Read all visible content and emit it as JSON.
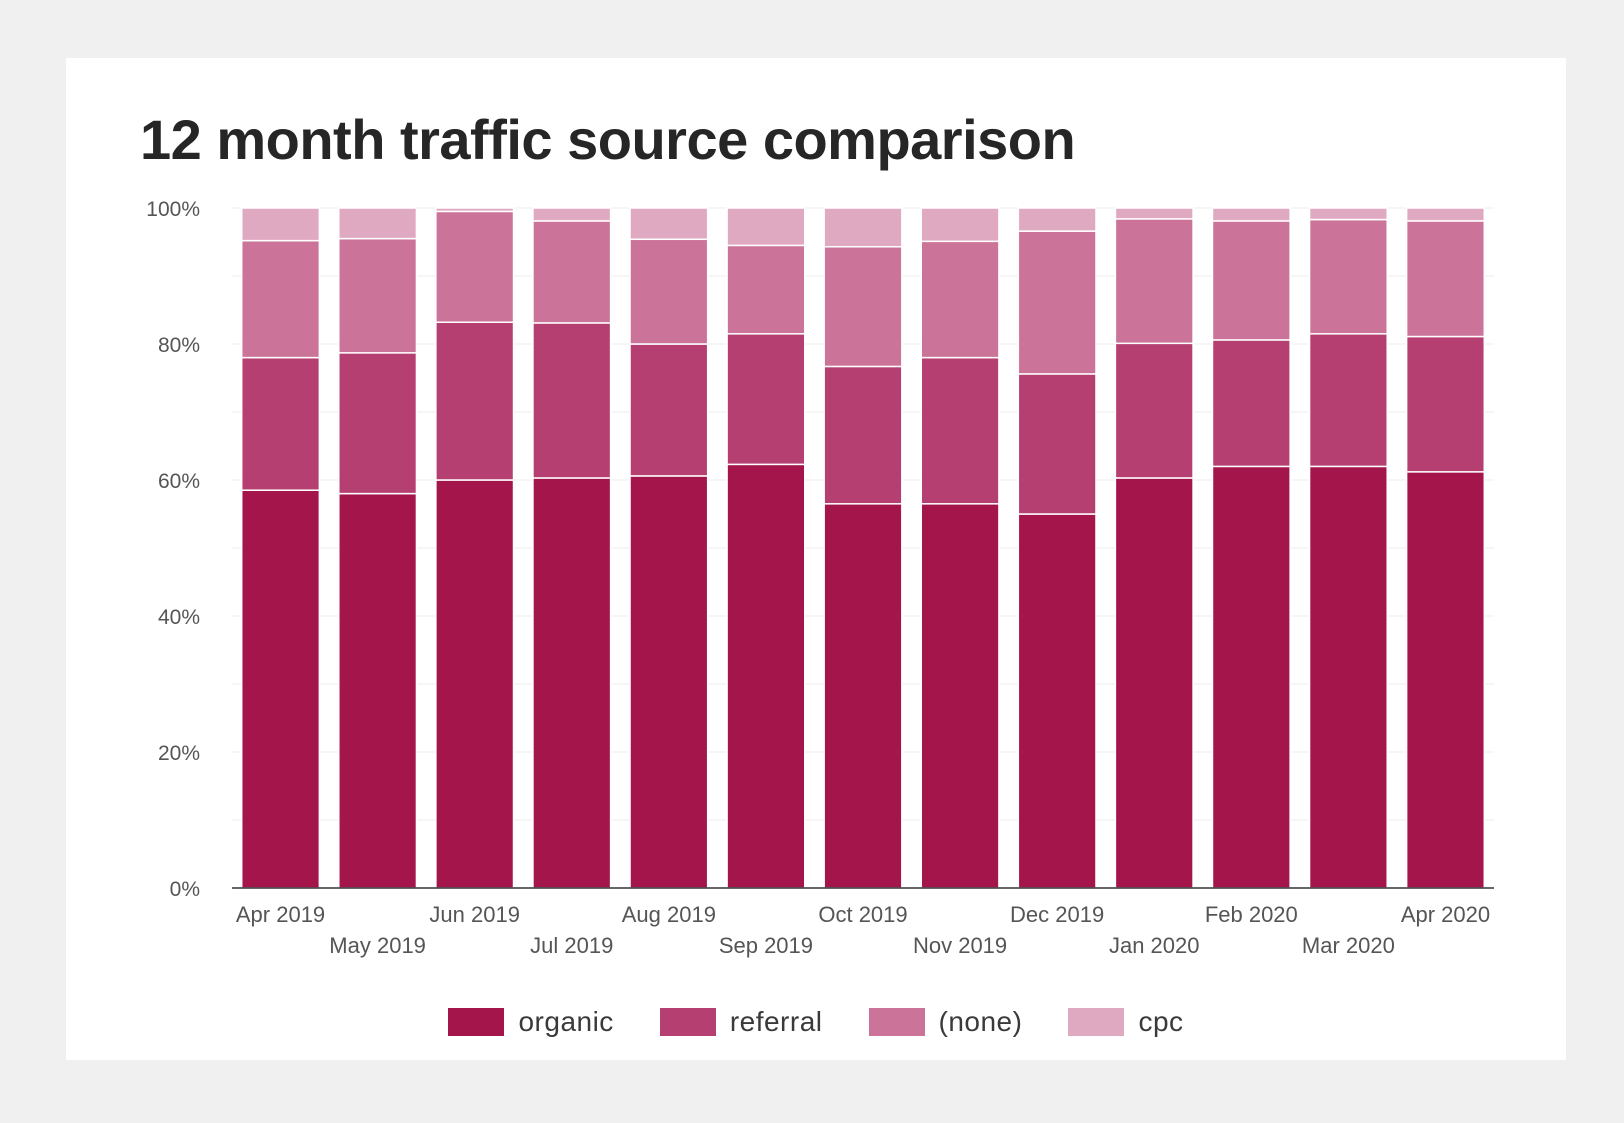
{
  "chart_data": {
    "type": "bar",
    "stacked": true,
    "title": "12 month traffic source comparison",
    "xlabel": "",
    "ylabel": "",
    "ylim": [
      0,
      100
    ],
    "yticks": [
      "0%",
      "20%",
      "40%",
      "60%",
      "80%",
      "100%"
    ],
    "ytick_values": [
      0,
      20,
      40,
      60,
      80,
      100
    ],
    "grid": true,
    "legend_position": "bottom",
    "categories": [
      "Apr 2019",
      "May 2019",
      "Jun 2019",
      "Jul 2019",
      "Aug 2019",
      "Sep 2019",
      "Oct 2019",
      "Nov 2019",
      "Dec 2019",
      "Jan 2020",
      "Feb 2020",
      "Mar 2020",
      "Apr 2020"
    ],
    "series": [
      {
        "name": "organic",
        "color": "#a3154b",
        "values": [
          58.5,
          58,
          60,
          60.3,
          60.6,
          62.3,
          56.5,
          56.5,
          55,
          60.3,
          62,
          62,
          61.2
        ]
      },
      {
        "name": "referral",
        "color": "#b53f70",
        "values": [
          19.5,
          20.7,
          23.2,
          22.8,
          19.4,
          19.2,
          20.2,
          21.5,
          20.6,
          19.8,
          18.6,
          19.5,
          19.9
        ]
      },
      {
        "name": "(none)",
        "color": "#cb7398",
        "values": [
          17.2,
          16.8,
          16.3,
          15,
          15.4,
          13,
          17.6,
          17.1,
          21,
          18.3,
          17.5,
          16.8,
          17
        ]
      },
      {
        "name": "cpc",
        "color": "#e0a9c2",
        "values": [
          4.8,
          4.5,
          0.5,
          1.9,
          4.6,
          5.5,
          5.7,
          4.9,
          3.4,
          1.6,
          1.9,
          1.7,
          1.9
        ]
      }
    ]
  }
}
